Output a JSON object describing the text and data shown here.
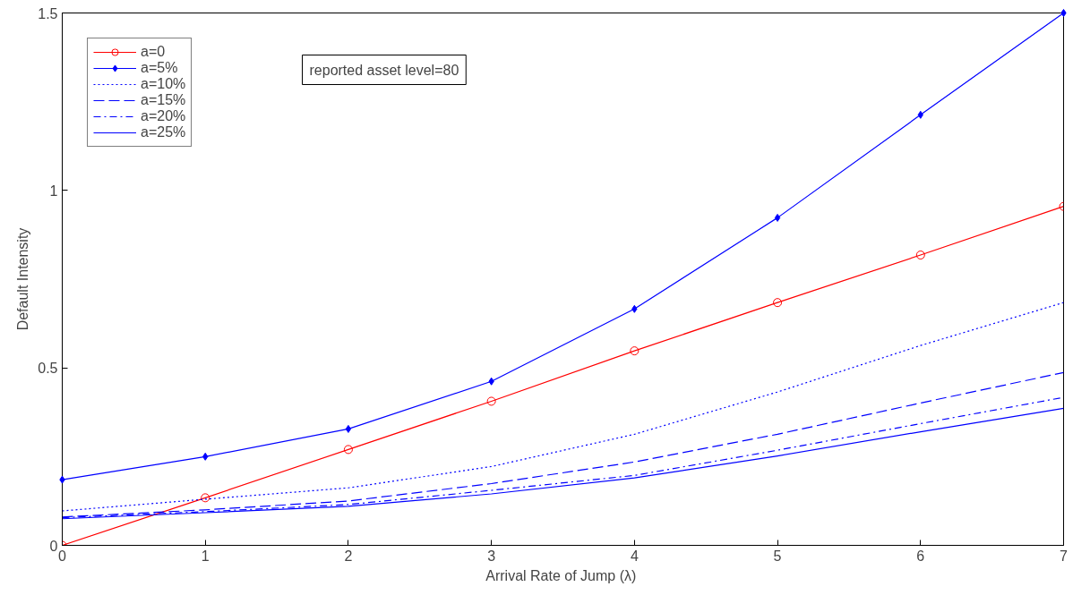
{
  "chart_data": {
    "type": "line",
    "xlabel": "Arrival Rate of Jump  (λ)",
    "ylabel": "Default Intensity",
    "x": [
      0,
      1,
      2,
      3,
      4,
      5,
      6,
      7
    ],
    "xlim": [
      0,
      7
    ],
    "xticks": [
      0,
      1,
      2,
      3,
      4,
      5,
      6,
      7
    ],
    "ylim": [
      0,
      1.5
    ],
    "yticks": [
      0,
      0.5,
      1,
      1.5
    ],
    "grid": false,
    "legend": "top left",
    "annotations": [
      "reported asset level=80"
    ],
    "series": [
      {
        "name": "a=0",
        "color": "#ff0000",
        "marker": "circle",
        "line_style": "solid",
        "values": [
          0,
          0.134,
          0.27,
          0.406,
          0.548,
          0.684,
          0.818,
          0.955
        ]
      },
      {
        "name": "a=5%",
        "color": "#0000ff",
        "marker": "diamond",
        "line_style": "solid",
        "values": [
          0.185,
          0.25,
          0.328,
          0.462,
          0.666,
          0.923,
          1.213,
          1.5
        ]
      },
      {
        "name": "a=10%",
        "color": "#0000ff",
        "marker": "none",
        "line_style": "dotted",
        "values": [
          0.097,
          0.13,
          0.162,
          0.222,
          0.313,
          0.432,
          0.563,
          0.684
        ]
      },
      {
        "name": "a=15%",
        "color": "#0000ff",
        "marker": "none",
        "line_style": "dashed",
        "values": [
          0.08,
          0.1,
          0.125,
          0.174,
          0.235,
          0.313,
          0.401,
          0.487
        ]
      },
      {
        "name": "a=20%",
        "color": "#0000ff",
        "marker": "none",
        "line_style": "dashdot",
        "values": [
          0.078,
          0.095,
          0.115,
          0.155,
          0.197,
          0.268,
          0.343,
          0.417
        ]
      },
      {
        "name": "a=25%",
        "color": "#0000ff",
        "marker": "none",
        "line_style": "solid",
        "values": [
          0.075,
          0.092,
          0.11,
          0.145,
          0.19,
          0.252,
          0.32,
          0.386
        ]
      }
    ]
  }
}
